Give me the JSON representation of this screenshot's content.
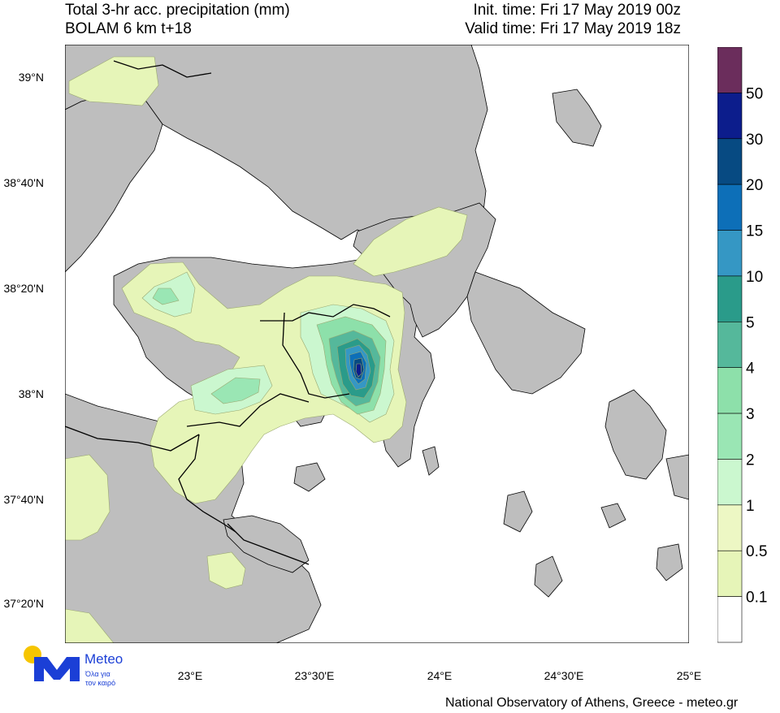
{
  "header": {
    "title_line1": "Total 3-hr acc. precipitation (mm)",
    "title_line2": "BOLAM 6 km t+18",
    "init_time": "Init. time: Fri 17 May 2019 00z",
    "valid_time": "Valid time: Fri 17 May 2019 18z"
  },
  "axes": {
    "lat_labels": [
      "39°N",
      "38°40'N",
      "38°20'N",
      "38°N",
      "37°40'N",
      "37°20'N"
    ],
    "lon_labels": [
      "23°E",
      "23°30'E",
      "24°E",
      "24°30'E",
      "25°E"
    ]
  },
  "legend": {
    "levels": [
      "50",
      "30",
      "20",
      "15",
      "10",
      "5",
      "4",
      "3",
      "2",
      "1",
      "0.5",
      "0.1"
    ],
    "colors": [
      "#6b2d5c",
      "#0c1d8c",
      "#074a82",
      "#0d6fb8",
      "#3597c4",
      "#2a9b8a",
      "#55b89b",
      "#8de0aa",
      "#9ae6b4",
      "#cbf7cf",
      "#edf7c4",
      "#e6f5b8",
      "#ffffff"
    ]
  },
  "logo": {
    "brand": "Meteo",
    "tagline1": "Όλα για",
    "tagline2": "τον καιρό"
  },
  "footer": {
    "credit": "National Observatory of Athens, Greece - meteo.gr"
  },
  "colors": {
    "land": "#bebebe",
    "sea": "#ffffff",
    "border": "#000000"
  }
}
